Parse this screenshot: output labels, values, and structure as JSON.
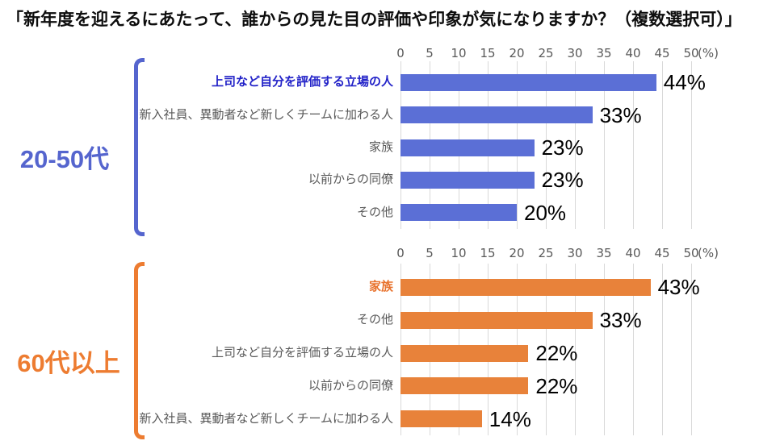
{
  "title": "「新年度を迎えるにあたって、誰からの見た目の評価や印象が気になりますか？（複数選択可）」",
  "axis": {
    "ticks": [
      0,
      5,
      10,
      15,
      20,
      25,
      30,
      35,
      40,
      45,
      50
    ],
    "unit": "(%)",
    "min": 0,
    "max": 50,
    "grid": true,
    "gridline_color": "#d9d9d9"
  },
  "chart_data": [
    {
      "type": "bar",
      "orientation": "horizontal",
      "group": "20-50代",
      "bar_color": "#5b6fd6",
      "accent_color": "#5565ce",
      "highlight_label_color": "#2222c8",
      "xlim": [
        0,
        50
      ],
      "x_ticks": [
        0,
        5,
        10,
        15,
        20,
        25,
        30,
        35,
        40,
        45,
        50
      ],
      "x_unit": "(%)",
      "categories": [
        "上司など自分を評価する立場の人",
        "新入社員、異動者など新しくチームに加わる人",
        "家族",
        "以前からの同僚",
        "その他"
      ],
      "values": [
        44,
        33,
        23,
        23,
        20
      ],
      "value_labels": [
        "44%",
        "33%",
        "23%",
        "23%",
        "20%"
      ],
      "highlight_index": 0
    },
    {
      "type": "bar",
      "orientation": "horizontal",
      "group": "60代以上",
      "bar_color": "#e8823a",
      "accent_color": "#ed7c31",
      "highlight_label_color": "#e8722d",
      "xlim": [
        0,
        50
      ],
      "x_ticks": [
        0,
        5,
        10,
        15,
        20,
        25,
        30,
        35,
        40,
        45,
        50
      ],
      "x_unit": "(%)",
      "categories": [
        "家族",
        "その他",
        "上司など自分を評価する立場の人",
        "以前からの同僚",
        "新入社員、異動者など新しくチームに加わる人"
      ],
      "values": [
        43,
        33,
        22,
        22,
        14
      ],
      "value_labels": [
        "43%",
        "33%",
        "22%",
        "22%",
        "14%"
      ],
      "highlight_index": 0
    }
  ]
}
